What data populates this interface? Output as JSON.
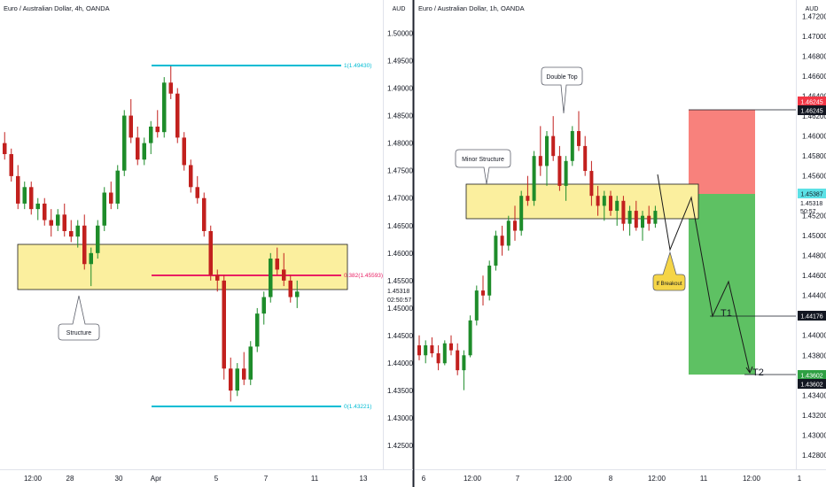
{
  "colors": {
    "up": "#26a69a",
    "bull": "#1e8c2a",
    "bear": "#c2201e",
    "zone_fill": "#fbef9e",
    "zone_stroke": "#1a1a1a",
    "fib": "#00bcd4",
    "fib_mid": "#e91e63",
    "stop": "#f7736e",
    "target": "#4cba52",
    "price_tag": "#131722",
    "red_tag": "#f23645",
    "cyan_tag": "#5ce1e6",
    "green_tag": "#2ea043"
  },
  "left_chart": {
    "title": "Euro / Australian Dollar, 4h, OANDA",
    "currency": "AUD",
    "price_axis": [
      "1.50000",
      "1.49500",
      "1.49000",
      "1.48500",
      "1.48000",
      "1.47500",
      "1.47000",
      "1.46500",
      "1.46000",
      "1.45500",
      "1.45000",
      "1.44500",
      "1.44000",
      "1.43500",
      "1.43000",
      "1.42500"
    ],
    "time_axis": [
      "12:00",
      "28",
      "30",
      "Apr",
      "5",
      "7",
      "11",
      "13"
    ],
    "last_price": "1.45318",
    "countdown": "02:50:57",
    "fib_top": "1(1.49430)",
    "fib_mid": "0.382(1.45593)",
    "fib_bottom": "0(1.43221)",
    "callout": "Structure"
  },
  "right_chart": {
    "title": "Euro / Australian Dollar, 1h, OANDA",
    "currency": "AUD",
    "price_axis": [
      "1.47200",
      "1.47000",
      "1.46800",
      "1.46600",
      "1.46400",
      "1.46200",
      "1.46000",
      "1.45800",
      "1.45600",
      "1.45400",
      "1.45200",
      "1.45000",
      "1.44800",
      "1.44600",
      "1.44400",
      "1.44200",
      "1.44000",
      "1.43800",
      "1.43600",
      "1.43400",
      "1.43200",
      "1.43000",
      "1.42800"
    ],
    "time_axis": [
      "6",
      "12:00",
      "7",
      "12:00",
      "8",
      "12:00",
      "11",
      "12:00",
      "1"
    ],
    "tag_stop_a": "1.46245",
    "tag_stop_b": "1.46245",
    "tag_entry": "1.45387",
    "last_price": "1.45318",
    "countdown": "50:57",
    "tag_t1": "1.44176",
    "tag_t2_a": "1.43602",
    "tag_t2_b": "1.43602",
    "callout_double_top": "Double Top",
    "callout_minor": "Minor Structure",
    "callout_breakout": "If Breakout",
    "label_t1": "T1",
    "label_t2": "T2"
  },
  "chart_data": [
    {
      "type": "candlestick",
      "title": "Euro / Australian Dollar, 4h, OANDA",
      "ylabel": "AUD",
      "ylim": [
        1.423,
        1.503
      ],
      "x": [
        "12:00",
        "28",
        "30",
        "Apr",
        "5",
        "7",
        "11",
        "13"
      ],
      "series": [
        {
          "values": [
            [
              1.48,
              1.482,
              1.477,
              1.478
            ],
            [
              1.478,
              1.479,
              1.473,
              1.474
            ],
            [
              1.474,
              1.476,
              1.468,
              1.469
            ],
            [
              1.469,
              1.473,
              1.468,
              1.472
            ],
            [
              1.472,
              1.473,
              1.467,
              1.468
            ],
            [
              1.468,
              1.47,
              1.466,
              1.469
            ],
            [
              1.469,
              1.47,
              1.465,
              1.466
            ],
            [
              1.466,
              1.468,
              1.463,
              1.465
            ],
            [
              1.465,
              1.468,
              1.464,
              1.467
            ],
            [
              1.467,
              1.469,
              1.463,
              1.464
            ],
            [
              1.464,
              1.466,
              1.462,
              1.463
            ],
            [
              1.463,
              1.466,
              1.461,
              1.465
            ],
            [
              1.465,
              1.467,
              1.457,
              1.458
            ],
            [
              1.458,
              1.461,
              1.454,
              1.46
            ],
            [
              1.46,
              1.466,
              1.459,
              1.465
            ],
            [
              1.465,
              1.472,
              1.464,
              1.471
            ],
            [
              1.471,
              1.473,
              1.468,
              1.469
            ],
            [
              1.469,
              1.476,
              1.468,
              1.475
            ],
            [
              1.475,
              1.486,
              1.474,
              1.485
            ],
            [
              1.485,
              1.488,
              1.48,
              1.481
            ],
            [
              1.481,
              1.483,
              1.476,
              1.477
            ],
            [
              1.477,
              1.481,
              1.476,
              1.48
            ],
            [
              1.48,
              1.484,
              1.478,
              1.483
            ],
            [
              1.483,
              1.486,
              1.481,
              1.482
            ],
            [
              1.482,
              1.492,
              1.481,
              1.491
            ],
            [
              1.491,
              1.494,
              1.488,
              1.489
            ],
            [
              1.489,
              1.49,
              1.48,
              1.481
            ],
            [
              1.481,
              1.482,
              1.475,
              1.476
            ],
            [
              1.476,
              1.477,
              1.471,
              1.472
            ],
            [
              1.472,
              1.474,
              1.469,
              1.47
            ],
            [
              1.47,
              1.471,
              1.463,
              1.464
            ],
            [
              1.464,
              1.465,
              1.455,
              1.456
            ],
            [
              1.456,
              1.457,
              1.453,
              1.455
            ],
            [
              1.455,
              1.456,
              1.437,
              1.439
            ],
            [
              1.439,
              1.441,
              1.433,
              1.435
            ],
            [
              1.435,
              1.44,
              1.434,
              1.439
            ],
            [
              1.439,
              1.442,
              1.436,
              1.437
            ],
            [
              1.437,
              1.444,
              1.436,
              1.443
            ],
            [
              1.443,
              1.45,
              1.442,
              1.449
            ],
            [
              1.449,
              1.453,
              1.447,
              1.452
            ],
            [
              1.452,
              1.46,
              1.451,
              1.459
            ],
            [
              1.459,
              1.461,
              1.456,
              1.457
            ],
            [
              1.457,
              1.46,
              1.454,
              1.455
            ],
            [
              1.455,
              1.456,
              1.451,
              1.452
            ],
            [
              1.452,
              1.455,
              1.45,
              1.453
            ]
          ]
        }
      ]
    },
    {
      "type": "candlestick",
      "title": "Euro / Australian Dollar, 1h, OANDA",
      "ylabel": "AUD",
      "ylim": [
        1.427,
        1.473
      ],
      "x": [
        "6",
        "12:00",
        "7",
        "12:00",
        "8",
        "12:00",
        "11",
        "12:00",
        "1"
      ],
      "series": [
        {
          "values": [
            [
              1.439,
              1.44,
              1.4375,
              1.438
            ],
            [
              1.438,
              1.4395,
              1.4372,
              1.439
            ],
            [
              1.439,
              1.4398,
              1.4378,
              1.4382
            ],
            [
              1.4382,
              1.439,
              1.4365,
              1.4372
            ],
            [
              1.4372,
              1.4395,
              1.437,
              1.4392
            ],
            [
              1.4392,
              1.44,
              1.438,
              1.4385
            ],
            [
              1.4385,
              1.4392,
              1.436,
              1.4365
            ],
            [
              1.4365,
              1.4385,
              1.4345,
              1.438
            ],
            [
              1.438,
              1.442,
              1.4378,
              1.4415
            ],
            [
              1.4415,
              1.445,
              1.441,
              1.4445
            ],
            [
              1.4445,
              1.446,
              1.443,
              1.444
            ],
            [
              1.444,
              1.4475,
              1.4435,
              1.447
            ],
            [
              1.447,
              1.4505,
              1.4465,
              1.45
            ],
            [
              1.45,
              1.451,
              1.448,
              1.449
            ],
            [
              1.449,
              1.452,
              1.4485,
              1.4515
            ],
            [
              1.4515,
              1.453,
              1.4495,
              1.4505
            ],
            [
              1.4505,
              1.4545,
              1.45,
              1.454
            ],
            [
              1.454,
              1.456,
              1.453,
              1.4535
            ],
            [
              1.4535,
              1.4585,
              1.453,
              1.458
            ],
            [
              1.458,
              1.461,
              1.456,
              1.457
            ],
            [
              1.457,
              1.4605,
              1.455,
              1.46
            ],
            [
              1.46,
              1.462,
              1.4575,
              1.458
            ],
            [
              1.458,
              1.459,
              1.4545,
              1.455
            ],
            [
              1.455,
              1.458,
              1.4535,
              1.4575
            ],
            [
              1.4575,
              1.461,
              1.457,
              1.4605
            ],
            [
              1.4605,
              1.4625,
              1.4585,
              1.459
            ],
            [
              1.459,
              1.46,
              1.456,
              1.4565
            ],
            [
              1.4565,
              1.4575,
              1.453,
              1.454
            ],
            [
              1.454,
              1.455,
              1.452,
              1.453
            ],
            [
              1.453,
              1.4545,
              1.4515,
              1.454
            ],
            [
              1.454,
              1.4545,
              1.452,
              1.4525
            ],
            [
              1.4525,
              1.454,
              1.451,
              1.4535
            ],
            [
              1.4535,
              1.454,
              1.4505,
              1.4512
            ],
            [
              1.4512,
              1.453,
              1.45,
              1.4525
            ],
            [
              1.4525,
              1.4535,
              1.4505,
              1.4508
            ],
            [
              1.4508,
              1.4525,
              1.4495,
              1.452
            ],
            [
              1.452,
              1.453,
              1.4505,
              1.4512
            ],
            [
              1.4512,
              1.453,
              1.4508,
              1.4525
            ]
          ]
        }
      ]
    }
  ]
}
